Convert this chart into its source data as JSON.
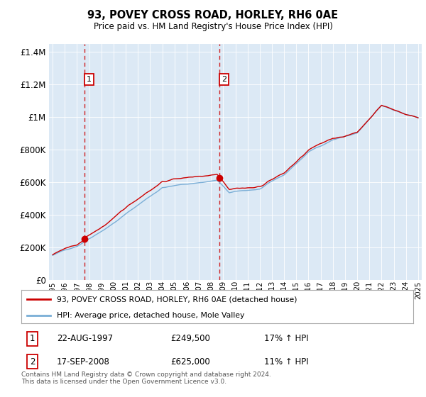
{
  "title": "93, POVEY CROSS ROAD, HORLEY, RH6 0AE",
  "subtitle": "Price paid vs. HM Land Registry's House Price Index (HPI)",
  "legend_line1": "93, POVEY CROSS ROAD, HORLEY, RH6 0AE (detached house)",
  "legend_line2": "HPI: Average price, detached house, Mole Valley",
  "sale1_date": 1997.643,
  "sale1_price": 249500,
  "sale1_label": "22-AUG-1997",
  "sale1_pct": "17% ↑ HPI",
  "sale2_date": 2008.714,
  "sale2_price": 625000,
  "sale2_label": "17-SEP-2008",
  "sale2_pct": "11% ↑ HPI",
  "ylim": [
    0,
    1450000
  ],
  "xlim": [
    1994.7,
    2025.3
  ],
  "property_color": "#cc0000",
  "hpi_color": "#7aaed6",
  "background_color": "#dce9f5",
  "footer": "Contains HM Land Registry data © Crown copyright and database right 2024.\nThis data is licensed under the Open Government Licence v3.0."
}
